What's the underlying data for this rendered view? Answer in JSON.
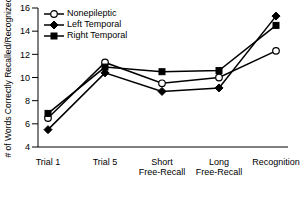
{
  "chart_data": {
    "type": "line",
    "y_label": "# of Words Correctly Recalled/Recognized",
    "categories": [
      "Trial 1",
      "Trial 5",
      "Short Free-Recall",
      "Long Free-Recall",
      "Recognition"
    ],
    "series": [
      {
        "name": "Nonepileptic",
        "color": "#000000",
        "marker": "circle",
        "values": [
          6.5,
          11.3,
          9.5,
          10.0,
          12.3
        ]
      },
      {
        "name": "Left Temporal",
        "color": "#000000",
        "marker": "diamond",
        "values": [
          5.5,
          10.4,
          8.8,
          9.1,
          15.3
        ]
      },
      {
        "name": "Right Temporal",
        "color": "#000000",
        "marker": "square",
        "values": [
          6.9,
          10.9,
          10.5,
          10.6,
          14.5
        ]
      }
    ],
    "ylim": [
      4,
      16
    ],
    "yticks": [
      4,
      6,
      8,
      10,
      12,
      14,
      16
    ],
    "grid": false,
    "legend": "upper left"
  }
}
